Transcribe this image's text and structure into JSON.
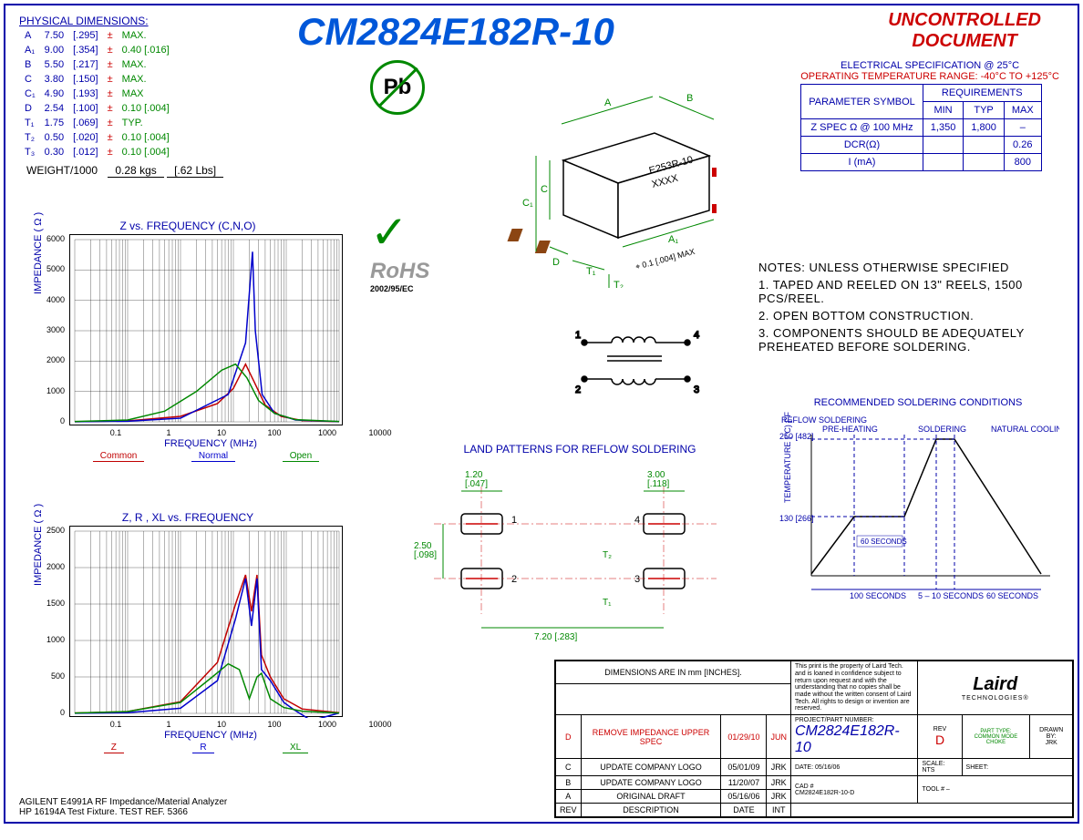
{
  "title": "CM2824E182R-10",
  "uncontrolled": {
    "l1": "UNCONTROLLED",
    "l2": "DOCUMENT"
  },
  "phys_dim": {
    "header": "PHYSICAL DIMENSIONS:",
    "rows": [
      {
        "sym": "A",
        "mm": "7.50",
        "in": "[.295]",
        "pm": "±",
        "tol": "MAX."
      },
      {
        "sym": "A₁",
        "mm": "9.00",
        "in": "[.354]",
        "pm": "±",
        "tol": "0.40 [.016]"
      },
      {
        "sym": "B",
        "mm": "5.50",
        "in": "[.217]",
        "pm": "±",
        "tol": "MAX."
      },
      {
        "sym": "C",
        "mm": "3.80",
        "in": "[.150]",
        "pm": "±",
        "tol": "MAX."
      },
      {
        "sym": "C₁",
        "mm": "4.90",
        "in": "[.193]",
        "pm": "±",
        "tol": "MAX"
      },
      {
        "sym": "D",
        "mm": "2.54",
        "in": "[.100]",
        "pm": "±",
        "tol": "0.10 [.004]"
      },
      {
        "sym": "T₁",
        "mm": "1.75",
        "in": "[.069]",
        "pm": "±",
        "tol": "TYP."
      },
      {
        "sym": "T₂",
        "mm": "0.50",
        "in": "[.020]",
        "pm": "±",
        "tol": "0.10 [.004]"
      },
      {
        "sym": "T₃",
        "mm": "0.30",
        "in": "[.012]",
        "pm": "±",
        "tol": "0.10 [.004]"
      }
    ],
    "weight_label": "WEIGHT/1000",
    "weight_kg": "0.28 kgs",
    "weight_lb": "[.62 Lbs]"
  },
  "elec": {
    "h1": "ELECTRICAL SPECIFICATION @ 25°C",
    "h2": "OPERATING TEMPERATURE RANGE: -40°C TO +125°C",
    "col_param": "PARAMETER SYMBOL",
    "col_req": "REQUIREMENTS",
    "cols": [
      "MIN",
      "TYP",
      "MAX"
    ],
    "rows": [
      {
        "p": "Z SPEC Ω @ 100 MHz",
        "min": "1,350",
        "typ": "1,800",
        "max": "–"
      },
      {
        "p": "DCR(Ω)",
        "min": "",
        "typ": "",
        "max": "0.26"
      },
      {
        "p": "I (mA)",
        "min": "",
        "typ": "",
        "max": "800"
      }
    ]
  },
  "notes": {
    "h": "NOTES: UNLESS OTHERWISE SPECIFIED",
    "items": [
      "1. TAPED AND REELED ON 13\" REELS, 1500 PCS/REEL.",
      "2. OPEN BOTTOM CONSTRUCTION.",
      "3. COMPONENTS SHOULD BE ADEQUATELY PREHEATED BEFORE SOLDERING."
    ]
  },
  "chart1": {
    "title": "Z vs. FREQUENCY (C,N,O)",
    "ylabel": "IMPEDANCE ( Ω )",
    "xlabel": "FREQUENCY (MHz)",
    "ymax": 6000,
    "ystep": 1000,
    "xticks": [
      0.1,
      1,
      10,
      100,
      1000,
      10000
    ],
    "legend": [
      {
        "label": "Common",
        "color": "#c00000"
      },
      {
        "label": "Normal",
        "color": "#0000cc"
      },
      {
        "label": "Open",
        "color": "#008800"
      }
    ],
    "series": {
      "common": {
        "color": "#c00000",
        "pts": [
          [
            0.1,
            5
          ],
          [
            1,
            30
          ],
          [
            10,
            180
          ],
          [
            50,
            600
          ],
          [
            100,
            1100
          ],
          [
            170,
            1900
          ],
          [
            250,
            1300
          ],
          [
            400,
            550
          ],
          [
            800,
            180
          ],
          [
            2000,
            40
          ],
          [
            10000,
            5
          ]
        ]
      },
      "normal": {
        "color": "#0000cc",
        "pts": [
          [
            0.1,
            5
          ],
          [
            1,
            20
          ],
          [
            10,
            120
          ],
          [
            80,
            900
          ],
          [
            170,
            2600
          ],
          [
            230,
            5600
          ],
          [
            260,
            3000
          ],
          [
            350,
            900
          ],
          [
            600,
            280
          ],
          [
            1500,
            60
          ],
          [
            10000,
            8
          ]
        ]
      },
      "open": {
        "color": "#008800",
        "pts": [
          [
            0.1,
            10
          ],
          [
            1,
            60
          ],
          [
            5,
            350
          ],
          [
            20,
            1000
          ],
          [
            60,
            1700
          ],
          [
            110,
            1900
          ],
          [
            180,
            1450
          ],
          [
            300,
            700
          ],
          [
            600,
            280
          ],
          [
            1500,
            70
          ],
          [
            10000,
            10
          ]
        ]
      }
    }
  },
  "chart2": {
    "title": "Z, R , XL vs. FREQUENCY",
    "ylabel": "IMPEDANCE ( Ω )",
    "xlabel": "FREQUENCY (MHz)",
    "ymax": 2500,
    "ystep": 500,
    "xticks": [
      0.1,
      1,
      10,
      100,
      1000,
      10000
    ],
    "legend": [
      {
        "label": "Z",
        "color": "#c00000"
      },
      {
        "label": "R",
        "color": "#0000cc"
      },
      {
        "label": "XL",
        "color": "#008800"
      }
    ],
    "series": {
      "z": {
        "color": "#c00000",
        "pts": [
          [
            0.1,
            5
          ],
          [
            1,
            25
          ],
          [
            10,
            160
          ],
          [
            50,
            700
          ],
          [
            110,
            1500
          ],
          [
            170,
            1900
          ],
          [
            220,
            1400
          ],
          [
            280,
            1900
          ],
          [
            340,
            800
          ],
          [
            500,
            500
          ],
          [
            900,
            200
          ],
          [
            2000,
            60
          ],
          [
            10000,
            10
          ]
        ]
      },
      "r": {
        "color": "#0000cc",
        "pts": [
          [
            0.1,
            2
          ],
          [
            1,
            10
          ],
          [
            10,
            70
          ],
          [
            50,
            450
          ],
          [
            110,
            1300
          ],
          [
            170,
            1850
          ],
          [
            220,
            1200
          ],
          [
            280,
            1850
          ],
          [
            340,
            600
          ],
          [
            500,
            450
          ],
          [
            900,
            150
          ],
          [
            1400,
            50
          ],
          [
            3000,
            -100
          ],
          [
            10000,
            5
          ]
        ]
      },
      "xl": {
        "color": "#008800",
        "pts": [
          [
            0.1,
            5
          ],
          [
            1,
            25
          ],
          [
            10,
            150
          ],
          [
            40,
            500
          ],
          [
            80,
            680
          ],
          [
            130,
            600
          ],
          [
            200,
            200
          ],
          [
            280,
            500
          ],
          [
            340,
            550
          ],
          [
            500,
            200
          ],
          [
            900,
            80
          ],
          [
            2000,
            30
          ],
          [
            10000,
            5
          ]
        ]
      }
    }
  },
  "agilent": {
    "l1": "AGILENT E4991A RF Impedance/Material Analyzer",
    "l2": "HP 16194A Test Fixture.  TEST REF. 5366"
  },
  "component": {
    "pb": "Pb",
    "rohs": "RoHS",
    "rohs_sub": "2002/95/EC",
    "marking1": "E253R-10",
    "marking2": "XXXX",
    "dims": {
      "A": "A",
      "A1": "A₁",
      "B": "B",
      "C": "C",
      "C1": "C₁",
      "D": "D",
      "T1": "T₁",
      "T2": "T₂",
      "T3": "T₃"
    },
    "coplanar": "0.1 [.004] MAX"
  },
  "schematic": {
    "pins": [
      "1",
      "2",
      "3",
      "4"
    ]
  },
  "land": {
    "title": "LAND PATTERNS FOR REFLOW SOLDERING",
    "d1": "1.20 [.047]",
    "d2": "2.50 [.098]",
    "d3": "7.20 [.283]",
    "d4": "3.00 [.118]",
    "pads": [
      "1",
      "2",
      "3",
      "4"
    ],
    "t1": "T₁",
    "t2": "T₂"
  },
  "solder": {
    "title": "RECOMMENDED SOLDERING CONDITIONS",
    "reflow": "REFLOW SOLDERING",
    "phases": [
      "PRE-HEATING",
      "SOLDERING",
      "NATURAL COOLING"
    ],
    "ylabel": "TEMPERATURE (°C) [°F]",
    "y250": "250 [482]",
    "y130": "130 [266]",
    "t60a": "60 SECONDS",
    "t100": "100 SECONDS",
    "t510": "5 – 10 SECONDS",
    "t60b": "60 SECONDS"
  },
  "titleblock": {
    "dim_note": "DIMENSIONS ARE IN mm [INCHES].",
    "legal": "This print is the property of Laird Tech. and is loaned in confidence subject to return upon request and with the understanding that no copies shall be made without the written consent of Laird Tech. All rights to design or invention are reserved.",
    "company": "Laird",
    "company_sub": "TECHNOLOGIES®",
    "revs": [
      {
        "r": "D",
        "d": "REMOVE IMPEDANCE UPPER SPEC",
        "dt": "01/29/10",
        "by": "JUN",
        "red": true
      },
      {
        "r": "C",
        "d": "UPDATE COMPANY LOGO",
        "dt": "05/01/09",
        "by": "JRK"
      },
      {
        "r": "B",
        "d": "UPDATE COMPANY LOGO",
        "dt": "11/20/07",
        "by": "JRK"
      },
      {
        "r": "A",
        "d": "ORIGINAL DRAFT",
        "dt": "05/16/06",
        "by": "JRK"
      }
    ],
    "rev_hdr": [
      "REV",
      "DESCRIPTION",
      "DATE",
      "INT"
    ],
    "part_label": "PROJECT/PART NUMBER:",
    "part": "CM2824E182R-10",
    "rev_label": "REV",
    "rev": "D",
    "parttype_label": "PART TYPE:",
    "parttype": "COMMON MODE CHOKE",
    "drawn_label": "DRAWN BY:",
    "drawn": "JRK",
    "date_label": "DATE:",
    "date": "05/16/06",
    "scale_label": "SCALE:",
    "scale": "NTS",
    "sheet_label": "SHEET:",
    "cad_label": "CAD #",
    "cad": "CM2824E182R-10-D",
    "tool_label": "TOOL #",
    "tool": "–"
  }
}
